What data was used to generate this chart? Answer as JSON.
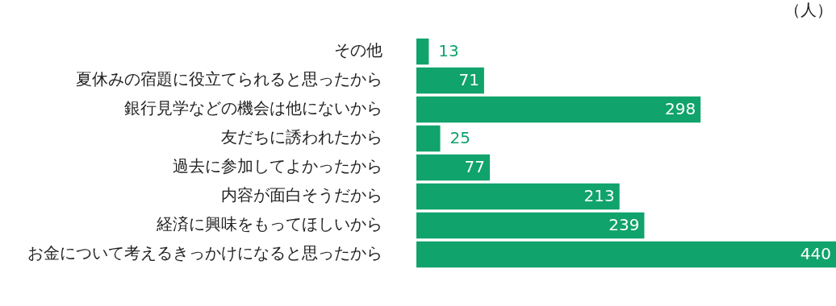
{
  "chart_data": {
    "type": "bar",
    "orientation": "horizontal",
    "categories": [
      "その他",
      "夏休みの宿題に役立てられると思ったから",
      "銀行見学などの機会は他にないから",
      "友だちに誘われたから",
      "過去に参加してよかったから",
      "内容が面白そうだから",
      "経済に興味をもってほしいから",
      "お金について考えるきっかけになると思ったから"
    ],
    "values": [
      13,
      71,
      298,
      25,
      77,
      213,
      239,
      440
    ],
    "color": "#10a36c",
    "data_labels": true,
    "legend": false,
    "annotations": [
      "（人）"
    ]
  }
}
